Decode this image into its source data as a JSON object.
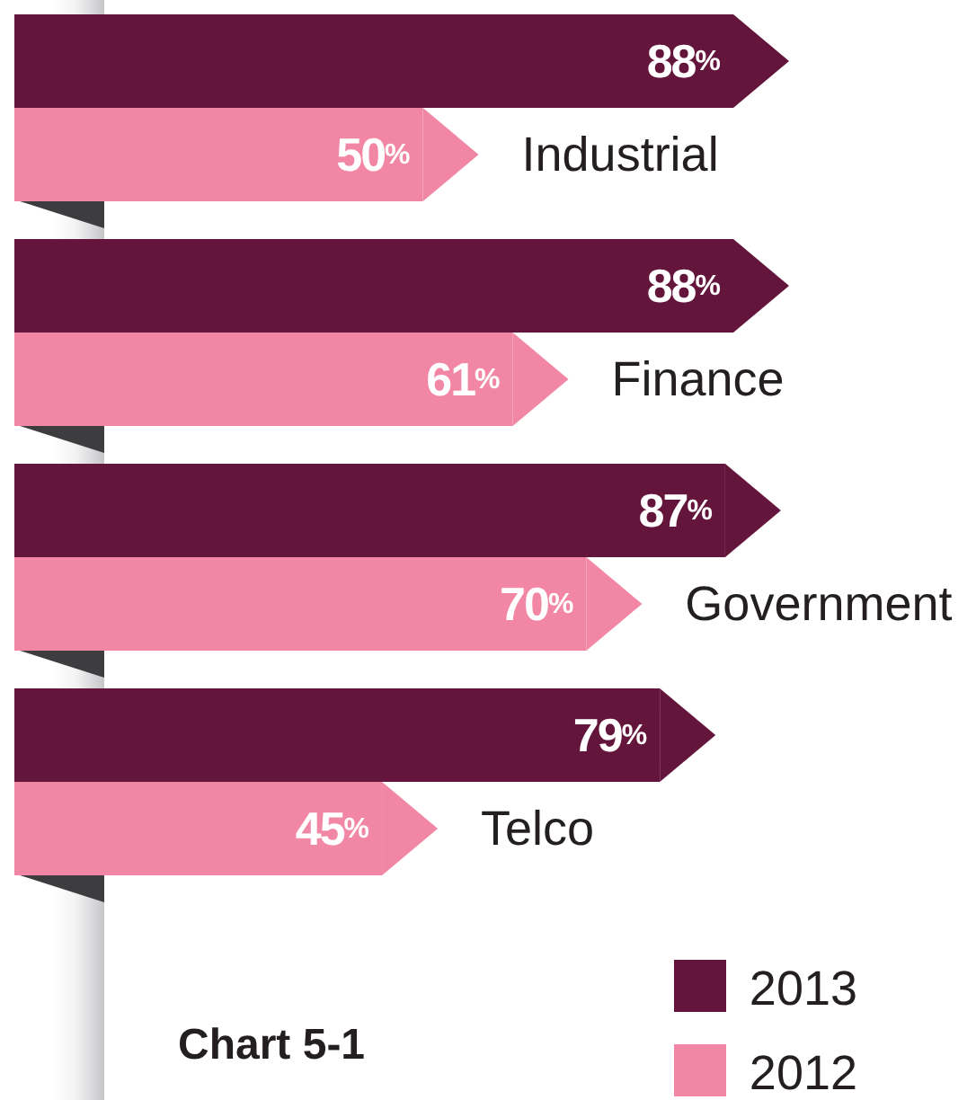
{
  "chart_data": {
    "type": "bar",
    "orientation": "horizontal",
    "categories": [
      "Industrial",
      "Finance",
      "Government",
      "Telco"
    ],
    "series": [
      {
        "name": "2013",
        "color": "#64153b",
        "values": [
          88,
          88,
          87,
          79
        ],
        "value_labels": [
          "88%",
          "88%",
          "87%",
          "79%"
        ]
      },
      {
        "name": "2012",
        "color": "#f287a5",
        "values": [
          50,
          61,
          70,
          45
        ],
        "value_labels": [
          "50%",
          "61%",
          "70%",
          "45%"
        ]
      }
    ],
    "legend": "bottom right",
    "annotations": [
      "Chart 5-1"
    ]
  }
}
